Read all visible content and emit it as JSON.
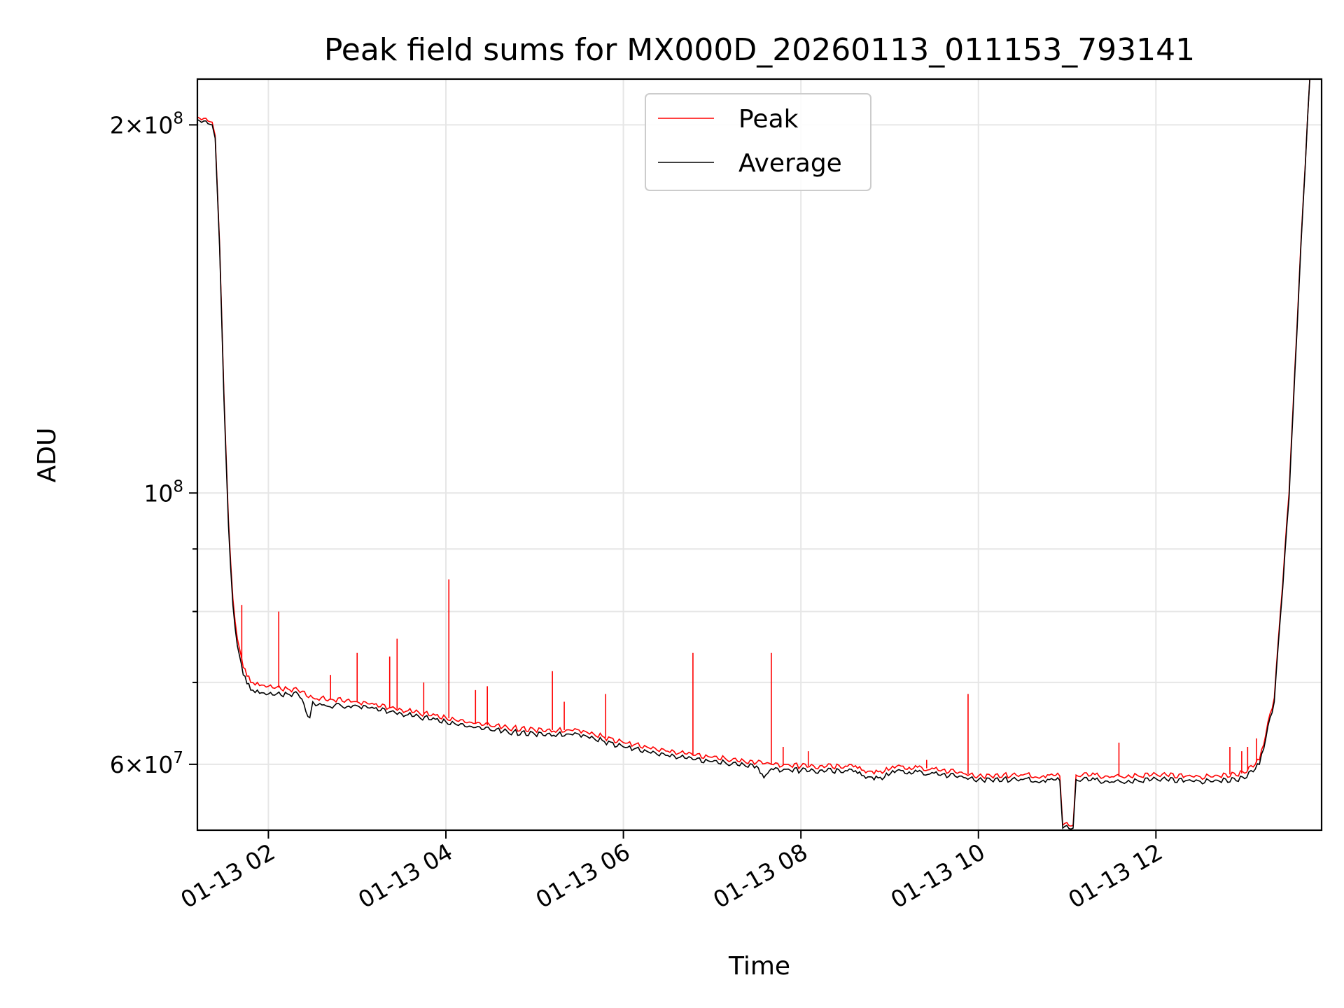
{
  "chart_data": {
    "type": "line",
    "title": "Peak field sums for MX000D_20260113_011153_793141",
    "xlabel": "Time",
    "ylabel": "ADU",
    "y_scale": "log",
    "grid": true,
    "legend": {
      "placement": "upper-center"
    },
    "xlim": [
      "01-13 01:12",
      "01-13 13:52"
    ],
    "ylim": [
      53000000,
      218000000
    ],
    "x_ticks": [
      {
        "at": "01-13 02:00",
        "label": "01-13 02"
      },
      {
        "at": "01-13 04:00",
        "label": "01-13 04"
      },
      {
        "at": "01-13 06:00",
        "label": "01-13 06"
      },
      {
        "at": "01-13 08:00",
        "label": "01-13 08"
      },
      {
        "at": "01-13 10:00",
        "label": "01-13 10"
      },
      {
        "at": "01-13 12:00",
        "label": "01-13 12"
      }
    ],
    "y_major_ticks": [
      {
        "value": 60000000,
        "base": "6",
        "exp": "7"
      },
      {
        "value": 100000000,
        "base": "",
        "exp": "8"
      },
      {
        "value": 200000000,
        "base": "2",
        "exp": "8"
      }
    ],
    "y_minor_ticks": [
      70000000,
      80000000,
      90000000
    ],
    "series": [
      {
        "name": "Peak",
        "color": "#ff0000",
        "points": [
          [
            "01-13 01:12",
            203000000
          ],
          [
            "01-13 01:22",
            201000000
          ],
          [
            "01-13 01:24",
            196000000
          ],
          [
            "01-13 01:27",
            160000000
          ],
          [
            "01-13 01:30",
            120000000
          ],
          [
            "01-13 01:33",
            95000000
          ],
          [
            "01-13 01:36",
            82000000
          ],
          [
            "01-13 01:39",
            76000000
          ],
          [
            "01-13 01:43",
            72000000
          ],
          [
            "01-13 01:48",
            70000000
          ],
          [
            "01-13 02:00",
            69500000
          ],
          [
            "01-13 02:20",
            69000000
          ],
          [
            "01-13 02:30",
            68000000
          ],
          [
            "01-13 03:00",
            67500000
          ],
          [
            "01-13 03:30",
            66500000
          ],
          [
            "01-13 04:00",
            65500000
          ],
          [
            "01-13 04:30",
            64500000
          ],
          [
            "01-13 05:00",
            64000000
          ],
          [
            "01-13 05:30",
            64000000
          ],
          [
            "01-13 06:00",
            62500000
          ],
          [
            "01-13 06:30",
            61500000
          ],
          [
            "01-13 07:00",
            60800000
          ],
          [
            "01-13 07:30",
            60200000
          ],
          [
            "01-13 08:00",
            59800000
          ],
          [
            "01-13 08:30",
            59800000
          ],
          [
            "01-13 08:55",
            59000000
          ],
          [
            "01-13 09:02",
            59800000
          ],
          [
            "01-13 09:30",
            59500000
          ],
          [
            "01-13 10:00",
            58700000
          ],
          [
            "01-13 10:30",
            58800000
          ],
          [
            "01-13 10:55",
            58700000
          ],
          [
            "01-13 10:57",
            53500000
          ],
          [
            "01-13 11:04",
            53500000
          ],
          [
            "01-13 11:06",
            58800000
          ],
          [
            "01-13 11:40",
            58600000
          ],
          [
            "01-13 12:00",
            58900000
          ],
          [
            "01-13 12:30",
            58600000
          ],
          [
            "01-13 13:00",
            59000000
          ],
          [
            "01-13 13:10",
            60500000
          ],
          [
            "01-13 13:20",
            68000000
          ],
          [
            "01-13 13:30",
            100000000
          ],
          [
            "01-13 13:38",
            160000000
          ],
          [
            "01-13 13:44",
            218000000
          ]
        ]
      },
      {
        "name": "Average",
        "color": "#000000",
        "points": [
          [
            "01-13 01:12",
            202000000
          ],
          [
            "01-13 01:22",
            200000000
          ],
          [
            "01-13 01:24",
            195000000
          ],
          [
            "01-13 01:27",
            159000000
          ],
          [
            "01-13 01:30",
            119000000
          ],
          [
            "01-13 01:33",
            94000000
          ],
          [
            "01-13 01:36",
            81000000
          ],
          [
            "01-13 01:39",
            75000000
          ],
          [
            "01-13 01:43",
            71000000
          ],
          [
            "01-13 01:48",
            69000000
          ],
          [
            "01-13 02:00",
            68500000
          ],
          [
            "01-13 02:20",
            68500000
          ],
          [
            "01-13 02:30",
            67500000
          ],
          [
            "01-13 02:28",
            65500000
          ],
          [
            "01-13 02:32",
            67000000
          ],
          [
            "01-13 03:00",
            67000000
          ],
          [
            "01-13 03:30",
            66000000
          ],
          [
            "01-13 04:00",
            65000000
          ],
          [
            "01-13 04:30",
            64000000
          ],
          [
            "01-13 05:00",
            63500000
          ],
          [
            "01-13 05:30",
            63500000
          ],
          [
            "01-13 06:00",
            62000000
          ],
          [
            "01-13 06:30",
            61000000
          ],
          [
            "01-13 07:00",
            60300000
          ],
          [
            "01-13 07:30",
            59800000
          ],
          [
            "01-13 07:35",
            58500000
          ],
          [
            "01-13 07:40",
            59500000
          ],
          [
            "01-13 08:00",
            59300000
          ],
          [
            "01-13 08:30",
            59300000
          ],
          [
            "01-13 08:55",
            58300000
          ],
          [
            "01-13 09:02",
            59300000
          ],
          [
            "01-13 09:30",
            59000000
          ],
          [
            "01-13 10:00",
            58300000
          ],
          [
            "01-13 10:30",
            58300000
          ],
          [
            "01-13 10:55",
            58200000
          ],
          [
            "01-13 10:57",
            53200000
          ],
          [
            "01-13 11:04",
            53200000
          ],
          [
            "01-13 11:06",
            58300000
          ],
          [
            "01-13 11:40",
            58000000
          ],
          [
            "01-13 12:00",
            58400000
          ],
          [
            "01-13 12:30",
            58100000
          ],
          [
            "01-13 13:00",
            58400000
          ],
          [
            "01-13 13:10",
            60000000
          ],
          [
            "01-13 13:20",
            67500000
          ],
          [
            "01-13 13:30",
            99000000
          ],
          [
            "01-13 13:38",
            159000000
          ],
          [
            "01-13 13:44",
            218000000
          ]
        ],
        "spikes": []
      }
    ],
    "peak_spikes": [
      [
        "01-13 01:42",
        81000000
      ],
      [
        "01-13 02:07",
        80000000
      ],
      [
        "01-13 02:42",
        71000000
      ],
      [
        "01-13 03:00",
        74000000
      ],
      [
        "01-13 03:22",
        73500000
      ],
      [
        "01-13 03:27",
        76000000
      ],
      [
        "01-13 03:45",
        70000000
      ],
      [
        "01-13 04:02",
        85000000
      ],
      [
        "01-13 04:20",
        69000000
      ],
      [
        "01-13 04:28",
        69500000
      ],
      [
        "01-13 05:12",
        71500000
      ],
      [
        "01-13 05:20",
        67500000
      ],
      [
        "01-13 05:48",
        68500000
      ],
      [
        "01-13 06:47",
        74000000
      ],
      [
        "01-13 07:40",
        74000000
      ],
      [
        "01-13 07:48",
        62000000
      ],
      [
        "01-13 08:05",
        61500000
      ],
      [
        "01-13 09:25",
        60500000
      ],
      [
        "01-13 09:53",
        68500000
      ],
      [
        "01-13 11:35",
        62500000
      ],
      [
        "01-13 12:50",
        62000000
      ],
      [
        "01-13 12:58",
        61500000
      ],
      [
        "01-13 13:02",
        62000000
      ],
      [
        "01-13 13:08",
        63000000
      ]
    ]
  }
}
